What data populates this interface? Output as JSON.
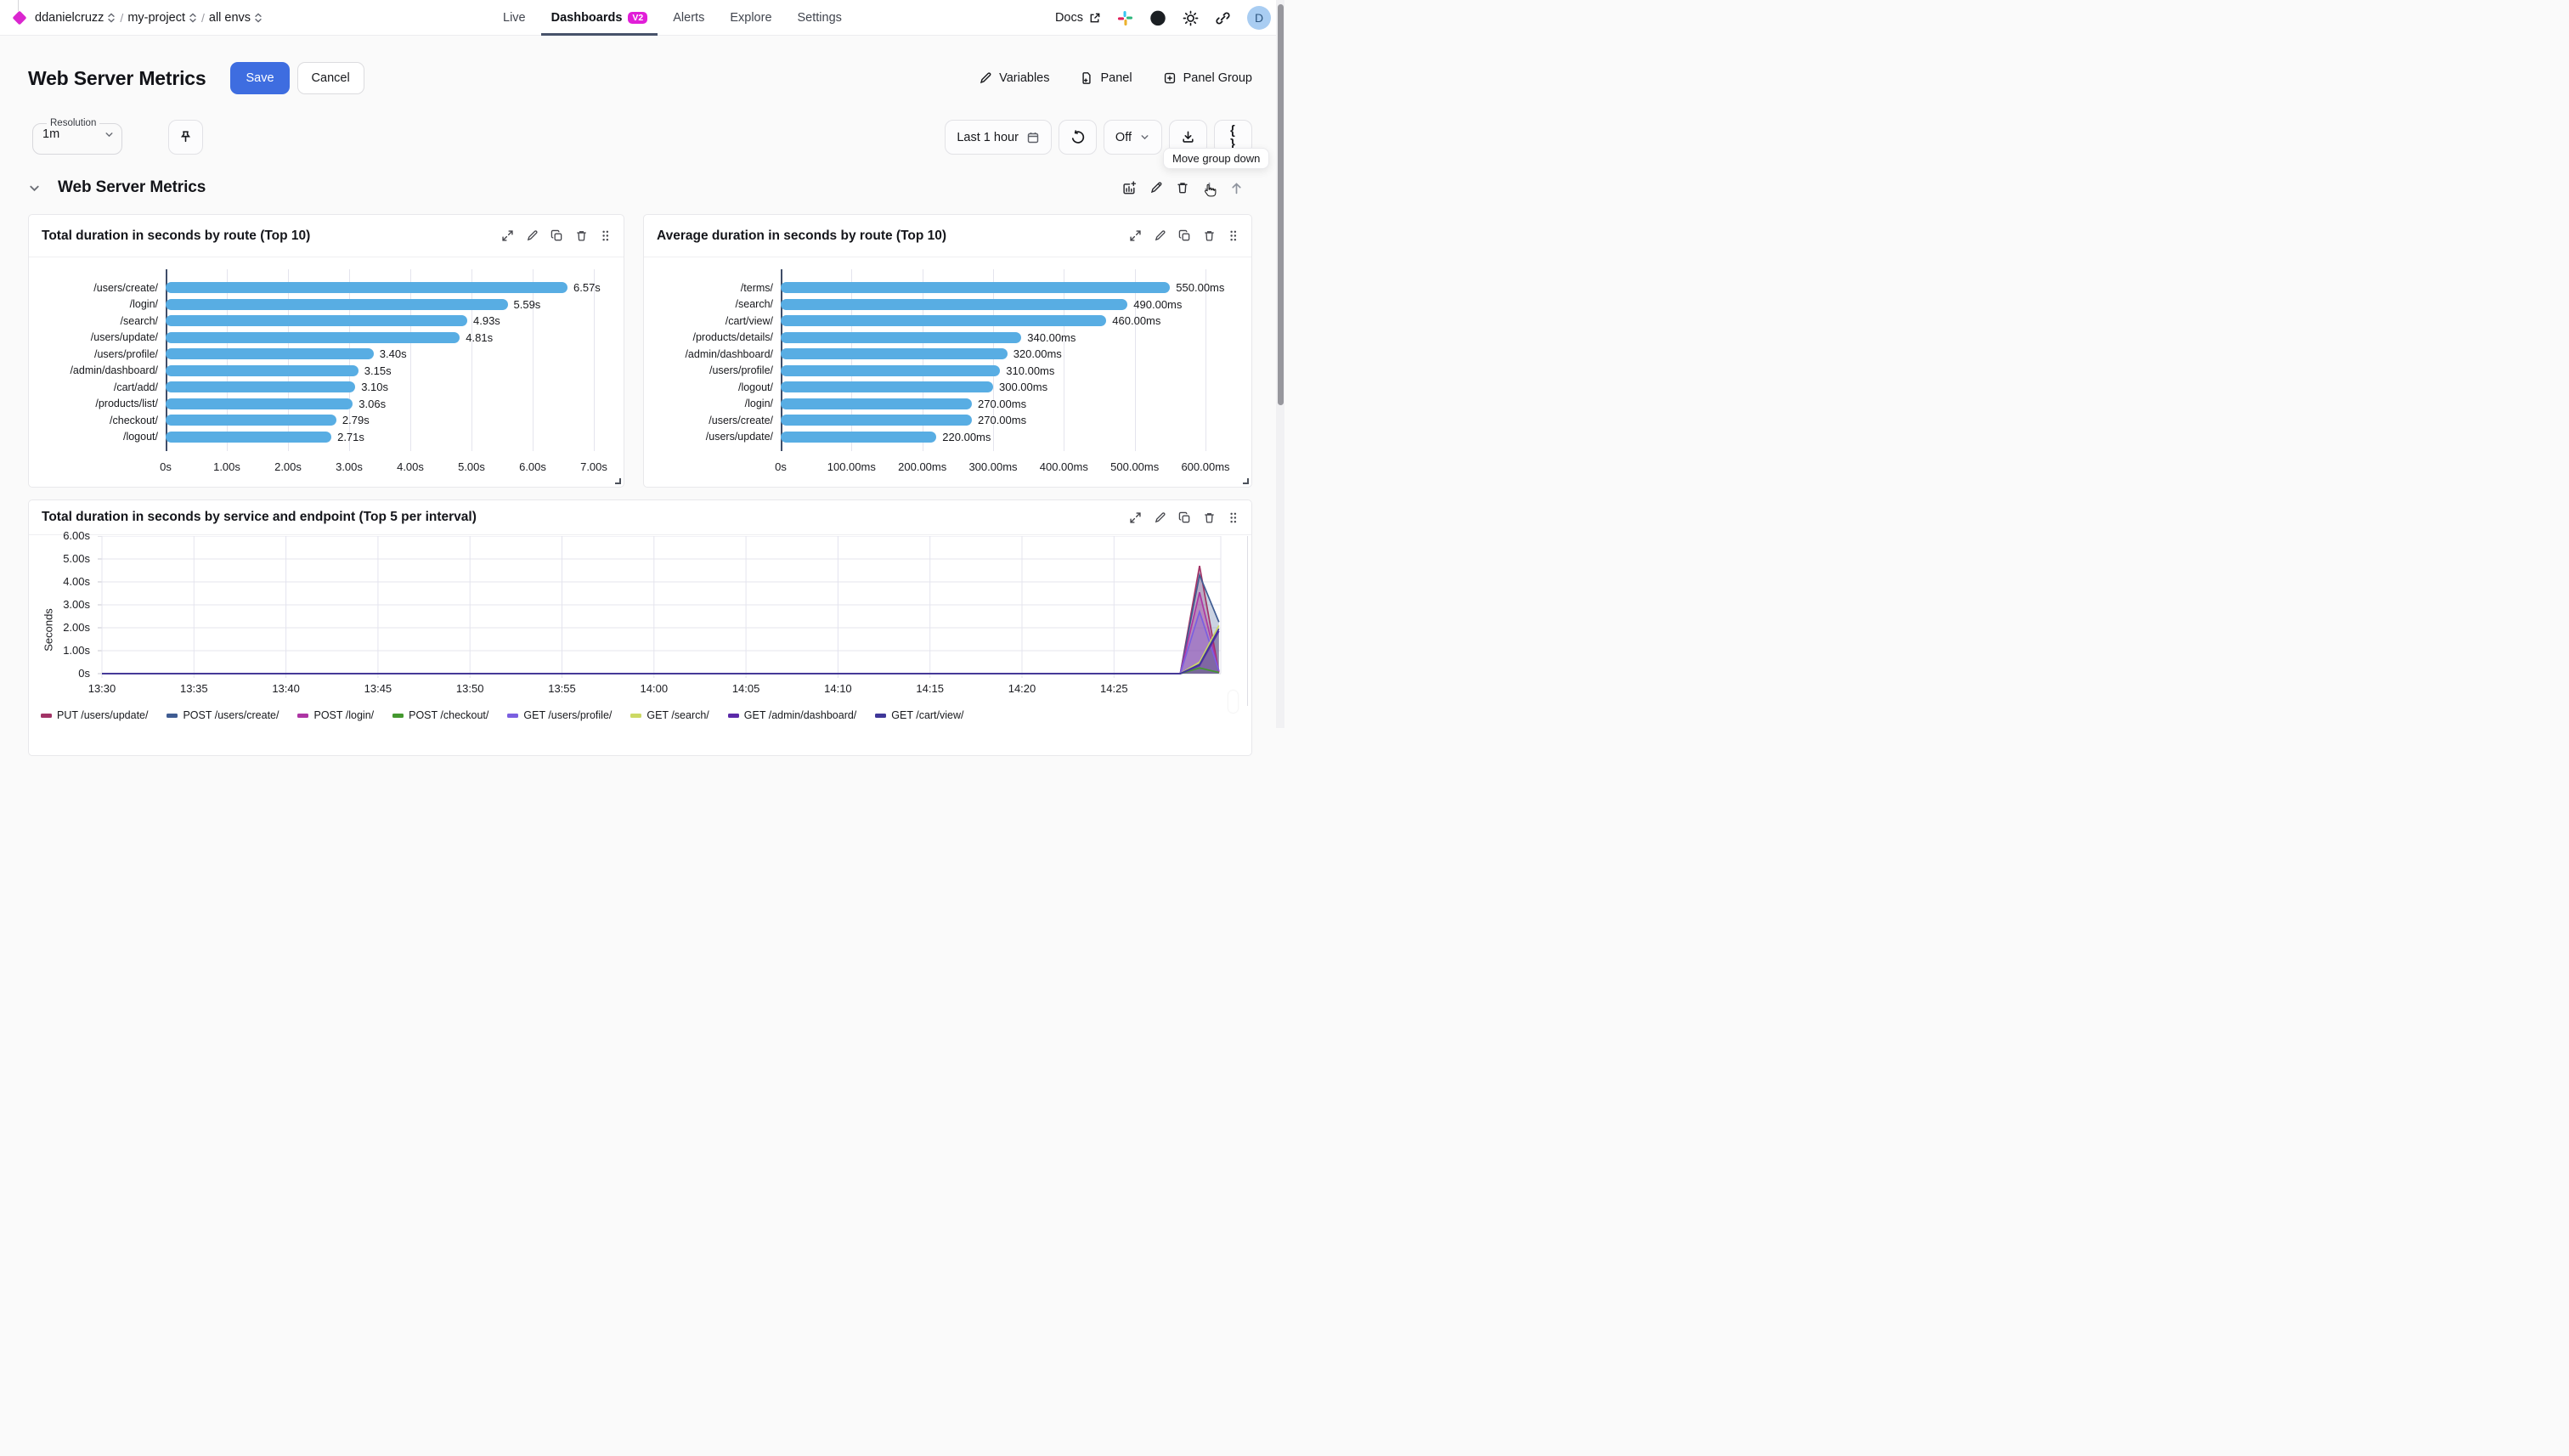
{
  "nav": {
    "breadcrumb": [
      {
        "label": "ddanielcruzz"
      },
      {
        "label": "my-project"
      },
      {
        "label": "all envs"
      }
    ],
    "menu": [
      {
        "label": "Live",
        "active": false
      },
      {
        "label": "Dashboards",
        "active": true,
        "badge": "V2"
      },
      {
        "label": "Alerts",
        "active": false
      },
      {
        "label": "Explore",
        "active": false
      },
      {
        "label": "Settings",
        "active": false
      }
    ],
    "docs": "Docs",
    "avatar": "D"
  },
  "header": {
    "title": "Web Server Metrics",
    "save": "Save",
    "cancel": "Cancel",
    "variables": "Variables",
    "panel": "Panel",
    "panel_group": "Panel Group"
  },
  "toolbar": {
    "resolution_label": "Resolution",
    "resolution_value": "1m",
    "time_range": "Last 1 hour",
    "refresh_interval": "Off",
    "braces": "{ }",
    "tooltip": "Move group down"
  },
  "section": {
    "title": "Web Server Metrics"
  },
  "colors": {
    "accent_blue": "#3e6de0",
    "badge_magenta": "#e11ed8",
    "bar_blue": "#58ade3"
  },
  "chart_data": [
    {
      "type": "bar",
      "orientation": "horizontal",
      "title": "Total duration in seconds by route (Top 10)",
      "unit": "s",
      "xlim": [
        0,
        7
      ],
      "x_ticks": [
        "0s",
        "1.00s",
        "2.00s",
        "3.00s",
        "4.00s",
        "5.00s",
        "6.00s",
        "7.00s"
      ],
      "categories": [
        "/users/create/",
        "/login/",
        "/search/",
        "/users/update/",
        "/users/profile/",
        "/admin/dashboard/",
        "/cart/add/",
        "/products/list/",
        "/checkout/",
        "/logout/"
      ],
      "values": [
        6.57,
        5.59,
        4.93,
        4.81,
        3.4,
        3.15,
        3.1,
        3.06,
        2.79,
        2.71
      ],
      "value_labels": [
        "6.57s",
        "5.59s",
        "4.93s",
        "4.81s",
        "3.40s",
        "3.15s",
        "3.10s",
        "3.06s",
        "2.79s",
        "2.71s"
      ]
    },
    {
      "type": "bar",
      "orientation": "horizontal",
      "title": "Average duration in seconds by route (Top 10)",
      "unit": "ms",
      "xlim": [
        0,
        600
      ],
      "x_ticks": [
        "0s",
        "100.00ms",
        "200.00ms",
        "300.00ms",
        "400.00ms",
        "500.00ms",
        "600.00ms"
      ],
      "categories": [
        "/terms/",
        "/search/",
        "/cart/view/",
        "/products/details/",
        "/admin/dashboard/",
        "/users/profile/",
        "/logout/",
        "/login/",
        "/users/create/",
        "/users/update/"
      ],
      "values": [
        550,
        490,
        460,
        340,
        320,
        310,
        300,
        270,
        270,
        220
      ],
      "value_labels": [
        "550.00ms",
        "490.00ms",
        "460.00ms",
        "340.00ms",
        "320.00ms",
        "310.00ms",
        "300.00ms",
        "270.00ms",
        "270.00ms",
        "220.00ms"
      ]
    },
    {
      "type": "area",
      "title": "Total duration in seconds by service and endpoint (Top 5 per interval)",
      "ylabel": "Seconds",
      "ylim": [
        0,
        6
      ],
      "y_ticks": [
        "0s",
        "1.00s",
        "2.00s",
        "3.00s",
        "4.00s",
        "5.00s",
        "6.00s"
      ],
      "x_ticks": [
        "13:30",
        "13:35",
        "13:40",
        "13:45",
        "13:50",
        "13:55",
        "14:00",
        "14:05",
        "14:10",
        "14:15",
        "14:20",
        "14:25"
      ],
      "x_start": "13:30",
      "minutes_per_tick": 5,
      "legend_position": "bottom",
      "series": [
        {
          "name": "PUT /users/update/",
          "color": "#a23366",
          "x_minutes": [
            0,
            58.6,
            59.65,
            60.7
          ],
          "y_seconds": [
            0,
            0,
            4.7,
            0.05
          ]
        },
        {
          "name": "POST /users/create/",
          "color": "#3f5c92",
          "x_minutes": [
            0,
            58.6,
            59.65,
            60.7
          ],
          "y_seconds": [
            0,
            0,
            4.3,
            2.25
          ]
        },
        {
          "name": "POST /login/",
          "color": "#ad35a4",
          "x_minutes": [
            0,
            58.6,
            59.65,
            60.7
          ],
          "y_seconds": [
            0,
            0,
            3.55,
            0.1
          ]
        },
        {
          "name": "POST /checkout/",
          "color": "#44982f",
          "x_minutes": [
            0,
            58.6,
            59.65,
            60.7
          ],
          "y_seconds": [
            0,
            0,
            0.25,
            0.05
          ]
        },
        {
          "name": "GET /users/profile/",
          "color": "#7a5fe0",
          "x_minutes": [
            0,
            58.6,
            59.65,
            60.7
          ],
          "y_seconds": [
            0,
            0,
            2.7,
            0.12
          ]
        },
        {
          "name": "GET /search/",
          "color": "#ccd964",
          "x_minutes": [
            0,
            58.6,
            59.65,
            60.7
          ],
          "y_seconds": [
            0,
            0,
            0.5,
            2.1
          ]
        },
        {
          "name": "GET /admin/dashboard/",
          "color": "#5b2aa8",
          "x_minutes": [
            0,
            58.6,
            59.65,
            60.7
          ],
          "y_seconds": [
            0,
            0,
            0.35,
            1.85
          ]
        },
        {
          "name": "GET /cart/view/",
          "color": "#3f3798",
          "x_minutes": [
            0,
            58.6,
            59.65,
            60.7
          ],
          "y_seconds": [
            0,
            0,
            0.4,
            1.95
          ]
        }
      ]
    }
  ]
}
